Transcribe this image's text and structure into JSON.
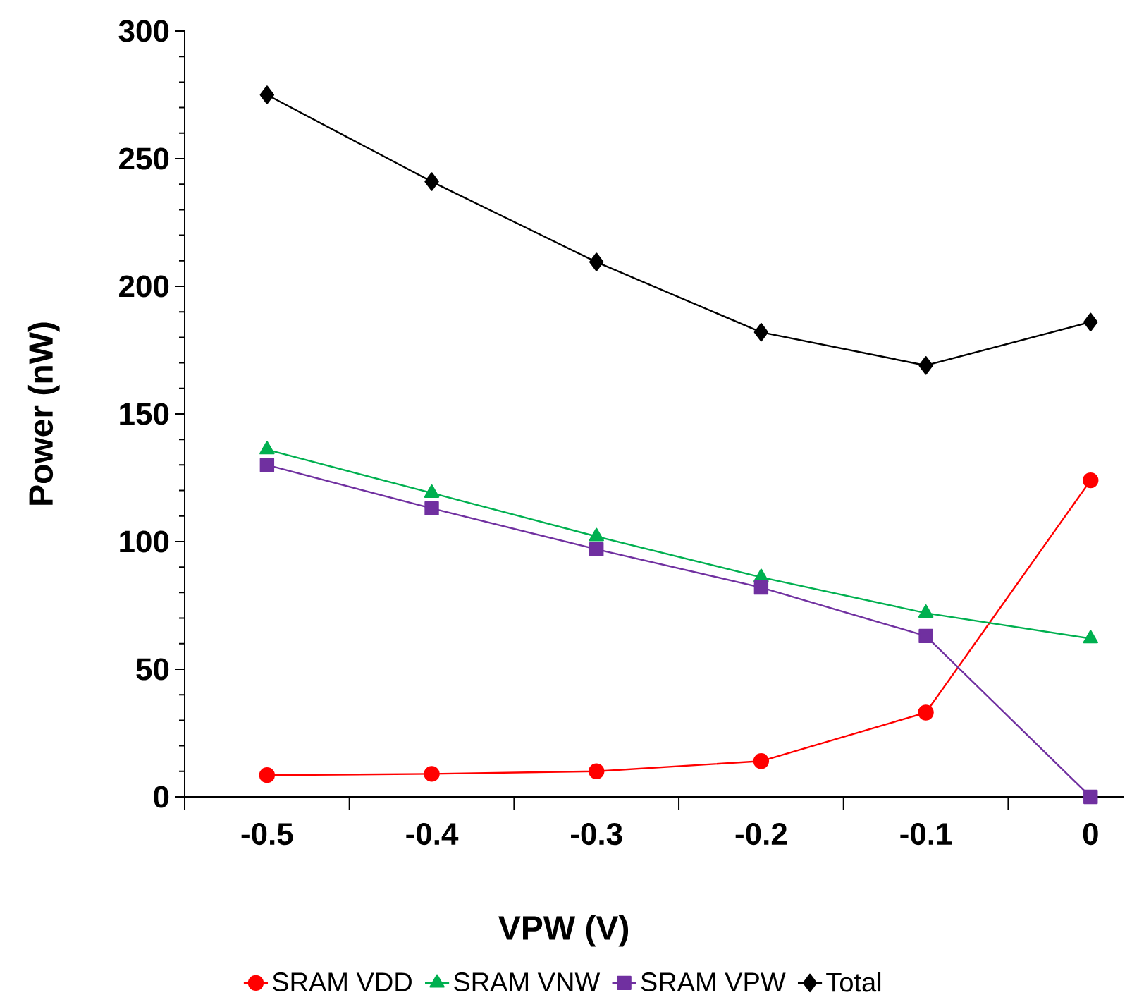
{
  "chart_data": {
    "type": "line",
    "xlabel": "VPW (V)",
    "ylabel": "Power (nW)",
    "categories": [
      "-0.5",
      "-0.4",
      "-0.3",
      "-0.2",
      "-0.1",
      "0"
    ],
    "series": [
      {
        "name": "SRAM VDD",
        "color": "#ff0000",
        "marker": "circle",
        "values": [
          8.5,
          9,
          10,
          14,
          33,
          124
        ]
      },
      {
        "name": "SRAM VNW",
        "color": "#00b050",
        "marker": "triangle",
        "values": [
          136,
          119,
          102,
          86,
          72,
          62
        ]
      },
      {
        "name": "SRAM VPW",
        "color": "#7030a0",
        "marker": "square",
        "values": [
          130,
          113,
          97,
          82,
          63,
          0
        ]
      },
      {
        "name": "Total",
        "color": "#000000",
        "marker": "diamond",
        "values": [
          275,
          241,
          209.5,
          182,
          169,
          186
        ]
      }
    ],
    "ylim": [
      0,
      300
    ],
    "yticks": [
      0,
      50,
      100,
      150,
      200,
      250,
      300
    ],
    "legend": "bottom"
  }
}
